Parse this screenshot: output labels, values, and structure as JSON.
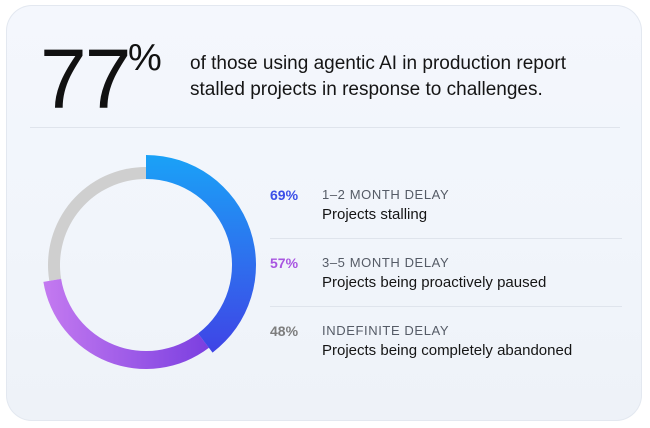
{
  "headline": {
    "number": "77",
    "percent_sign": "%",
    "text": "of those using agentic AI in production report stalled projects in response to challenges."
  },
  "chart_data": {
    "type": "pie",
    "categories": [
      "1–2 MONTH DELAY",
      "3–5 MONTH DELAY",
      "INDEFINITE DELAY"
    ],
    "values": [
      69,
      57,
      48
    ],
    "labels": [
      "69%",
      "57%",
      "48%"
    ],
    "descriptions": [
      "Projects stalling",
      "Projects being proactively paused",
      "Projects being completely abandoned"
    ],
    "colors": [
      "#3b4ee8",
      "#a855e0",
      "#7d7d7d"
    ],
    "legend_position": "right"
  },
  "ring_colors": {
    "blue_start": "#1aa2f7",
    "blue_end": "#3f44e6",
    "purple_start": "#7b3fe0",
    "purple_end": "#c47af0",
    "gray": "#cfcfcf"
  }
}
